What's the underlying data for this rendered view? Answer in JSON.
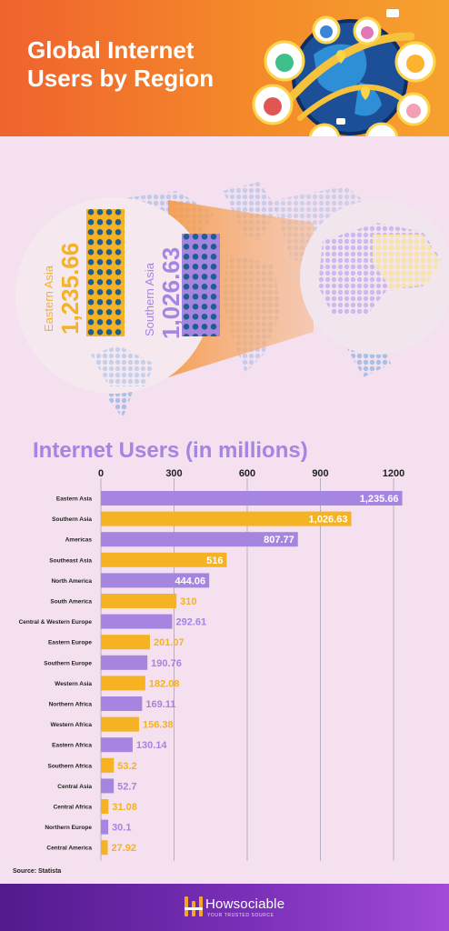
{
  "header": {
    "title": "Global Internet Users by Region",
    "icons": [
      "globe-icon",
      "user-avatar-icon",
      "location-pin-icon",
      "chat-bubble-icon"
    ]
  },
  "hero": {
    "left": {
      "region": "Eastern Asia",
      "value": "1,235.66",
      "color": "#f5b223"
    },
    "right": {
      "region": "Southern Asia",
      "value": "1,026.63",
      "color": "#a585e0"
    }
  },
  "chart_title": "Internet Users (in millions)",
  "source": "Source: Statista",
  "footer": {
    "brand": "Howsociable",
    "tagline": "YOUR TRUSTED SOURCE"
  },
  "colors": {
    "purple": "#a585e0",
    "gold": "#f5b223",
    "grid": "#b7b0c4",
    "bg": "#f4e0ee"
  },
  "chart_data": {
    "type": "bar",
    "orientation": "horizontal",
    "title": "Internet Users (in millions)",
    "categories": [
      "Eastern Asia",
      "Southern Asia",
      "Americas",
      "Southeast Asia",
      "North America",
      "South America",
      "Central & Western Europe",
      "Eastern Europe",
      "Southern Europe",
      "Western Asia",
      "Northern Africa",
      "Western Africa",
      "Eastern Africa",
      "Southern Africa",
      "Central Asia",
      "Central Africa",
      "Northern Europe",
      "Central America"
    ],
    "values": [
      1235.66,
      1026.63,
      807.77,
      516,
      444.06,
      310,
      292.61,
      201.07,
      190.76,
      182.08,
      169.11,
      156.38,
      130.14,
      53.2,
      52.7,
      31.08,
      30.1,
      27.92
    ],
    "labels": [
      "1,235.66",
      "1,026.63",
      "807.77",
      "516",
      "444.06",
      "310",
      "292.61",
      "201.07",
      "190.76",
      "182.08",
      "169.11",
      "156.38",
      "130.14",
      "53.2",
      "52.7",
      "31.08",
      "30.1",
      "27.92"
    ],
    "xticks": [
      0,
      300,
      600,
      900,
      1200
    ],
    "xlim": [
      0,
      1200
    ],
    "grid": true,
    "bar_colors": [
      "#a585e0",
      "#f5b223"
    ]
  }
}
